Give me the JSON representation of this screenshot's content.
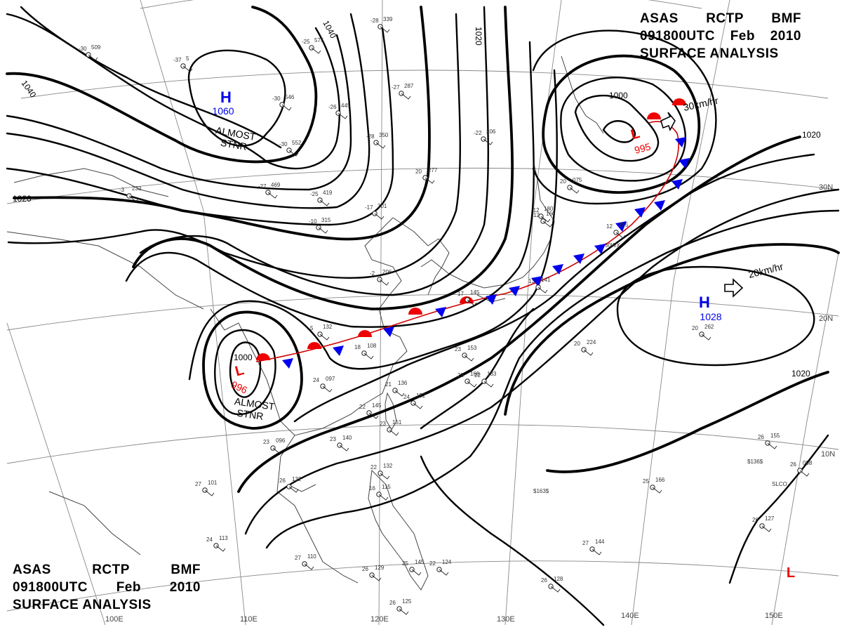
{
  "chart": {
    "product": [
      "ASAS",
      "RCTP",
      "BMF"
    ],
    "valid_time": [
      "091800UTC",
      "Feb",
      "2010"
    ],
    "type": "SURFACE ANALYSIS"
  },
  "pressure_systems": [
    {
      "kind": "high",
      "symbol": "H",
      "pressure": "1060",
      "note": "ALMOST STNR",
      "color": "#0000ee"
    },
    {
      "kind": "low",
      "symbol": "L",
      "pressure": "995",
      "note": "",
      "motion": "30km/hr",
      "color": "#ee0000"
    },
    {
      "kind": "high",
      "symbol": "H",
      "pressure": "1028",
      "note": "",
      "motion": "20km/hr",
      "color": "#0000ee"
    },
    {
      "kind": "low",
      "symbol": "L",
      "pressure": "996",
      "note": "ALMOST STNR",
      "color": "#ee0000"
    },
    {
      "kind": "low",
      "symbol": "L",
      "pressure": "",
      "note": "",
      "color": "#ee0000"
    }
  ],
  "isobar_labels": [
    "1040",
    "1040",
    "1020",
    "1020",
    "1000",
    "1000",
    "1020",
    "1020"
  ],
  "longitude_labels": [
    "100E",
    "110E",
    "120E",
    "130E",
    "140E",
    "150E"
  ],
  "latitude_labels": [
    "30N",
    "20N",
    "10N"
  ],
  "stations": [
    {
      "t": "-30",
      "p": "509"
    },
    {
      "t": "-37",
      "p": "5"
    },
    {
      "t": "-25",
      "p": "575"
    },
    {
      "t": "-28",
      "p": "339"
    },
    {
      "t": "-27",
      "p": "287"
    },
    {
      "t": "-26",
      "p": "445"
    },
    {
      "t": "-30",
      "p": "546"
    },
    {
      "t": "-30",
      "p": "552"
    },
    {
      "t": "-28",
      "p": "350"
    },
    {
      "t": "-25",
      "p": "419"
    },
    {
      "t": "-27",
      "p": "469"
    },
    {
      "t": "20",
      "p": "277"
    },
    {
      "t": "-22",
      "p": "206"
    },
    {
      "t": "-3",
      "p": "233"
    },
    {
      "t": "-10",
      "p": "315"
    },
    {
      "t": "-17",
      "p": "301"
    },
    {
      "t": "-2",
      "p": "206"
    },
    {
      "t": "5",
      "p": "132"
    },
    {
      "t": "18",
      "p": "108"
    },
    {
      "t": "24",
      "p": "097"
    },
    {
      "t": "21",
      "p": "136"
    },
    {
      "t": "22",
      "p": "145"
    },
    {
      "t": "23",
      "p": "151"
    },
    {
      "t": "23",
      "p": "140"
    },
    {
      "t": "23",
      "p": "096"
    },
    {
      "t": "26",
      "p": "132"
    },
    {
      "t": "27",
      "p": "101"
    },
    {
      "t": "22",
      "p": "132"
    },
    {
      "t": "16",
      "p": "115"
    },
    {
      "t": "24",
      "p": "113"
    },
    {
      "t": "27",
      "p": "110"
    },
    {
      "t": "26",
      "p": "129"
    },
    {
      "t": "26",
      "p": "125"
    },
    {
      "t": "25",
      "p": "145"
    },
    {
      "t": "23",
      "p": "153"
    },
    {
      "t": "22",
      "p": "168"
    },
    {
      "t": "22",
      "p": "183"
    },
    {
      "t": "24",
      "p": "152"
    },
    {
      "t": "20",
      "p": "224"
    },
    {
      "t": "20",
      "p": "262"
    },
    {
      "t": "25",
      "p": "166"
    },
    {
      "t": "26",
      "p": "098"
    },
    {
      "t": "26",
      "p": "128"
    },
    {
      "t": "12",
      "p": "155"
    },
    {
      "t": "17",
      "p": "145"
    },
    {
      "t": "13",
      "p": "141"
    },
    {
      "t": "12",
      "p": "160"
    },
    {
      "t": "26",
      "p": "155"
    },
    {
      "t": "27",
      "p": "144"
    },
    {
      "t": "26",
      "p": "127"
    },
    {
      "t": "22",
      "p": "124"
    },
    {
      "t": "20",
      "p": "075"
    },
    {
      "t": "-12",
      "p": "180"
    }
  ],
  "station_codes": [
    "30WX",
    "SLCO",
    "$163$",
    "$136$"
  ]
}
